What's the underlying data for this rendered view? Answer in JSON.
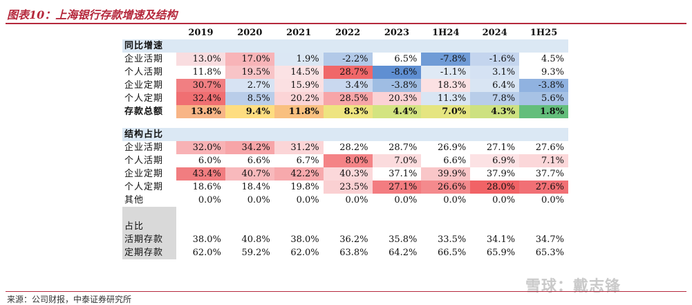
{
  "figure_title": "图表10：上海银行存款增速及结构",
  "source": "来源：公司财报，中泰证券研究所",
  "watermark": "雪球：戴志锋",
  "columns": [
    "2019",
    "2020",
    "2021",
    "2022",
    "2023",
    "1H24",
    "2024",
    "1H25"
  ],
  "sections": {
    "growth": {
      "title": "同比增速",
      "rows": [
        {
          "label": "企业活期",
          "values": [
            "13.0%",
            "17.0%",
            "1.9%",
            "-2.2%",
            "6.5%",
            "-7.8%",
            "-1.6%",
            "4.5%"
          ],
          "colors": [
            "#f9dde0",
            "#f8b4b8",
            "#dbe7f4",
            "#b2c9e8",
            "#ffffff",
            "#6f9bd6",
            "#c4d5ee",
            "#ffffff"
          ]
        },
        {
          "label": "个人活期",
          "values": [
            "11.8%",
            "19.5%",
            "14.5%",
            "28.7%",
            "-8.6%",
            "-1.1%",
            "3.1%",
            "9.3%"
          ],
          "colors": [
            "#ffffff",
            "#f8c4c7",
            "#fbe2e4",
            "#f06769",
            "#5f8fd2",
            "#dfe9f5",
            "#d5e2f3",
            "#ffffff"
          ]
        },
        {
          "label": "企业定期",
          "values": [
            "30.7%",
            "2.7%",
            "15.9%",
            "3.4%",
            "-3.8%",
            "18.3%",
            "6.4%",
            "-3.8%"
          ],
          "colors": [
            "#f17f82",
            "#d7e3f3",
            "#fbe0e2",
            "#c9d8ef",
            "#9fbde3",
            "#fbe1e3",
            "#d9e5f3",
            "#90b2e0"
          ]
        },
        {
          "label": "个人定期",
          "values": [
            "32.4%",
            "8.5%",
            "20.2%",
            "28.5%",
            "20.3%",
            "11.3%",
            "7.8%",
            "5.6%"
          ],
          "colors": [
            "#f06f72",
            "#b9cde9",
            "#fbd4d6",
            "#f7a5a8",
            "#fbd2d5",
            "#d9e5f3",
            "#b8cde9",
            "#a7c2e5"
          ]
        }
      ],
      "total": {
        "label": "存款总额",
        "values": [
          "13.8%",
          "9.4%",
          "11.8%",
          "8.3%",
          "4.4%",
          "7.0%",
          "4.3%",
          "1.8%"
        ],
        "colors": [
          "#f8b586",
          "#fedd80",
          "#f9c07f",
          "#eee480",
          "#d3e480",
          "#e5e580",
          "#cde180",
          "#63be7b"
        ]
      }
    },
    "structure": {
      "title": "结构占比",
      "rows": [
        {
          "label": "企业活期",
          "values": [
            "32.0%",
            "34.2%",
            "31.2%",
            "28.2%",
            "28.7%",
            "26.9%",
            "27.1%",
            "27.6%"
          ],
          "colors": [
            "#f8b2b5",
            "#f7a5a8",
            "#fbd5d7",
            "#ffffff",
            "#ffffff",
            "#ffffff",
            "#ffffff",
            "#ffffff"
          ]
        },
        {
          "label": "个人活期",
          "values": [
            "6.0%",
            "6.6%",
            "6.7%",
            "8.0%",
            "7.0%",
            "6.6%",
            "6.9%",
            "7.1%"
          ],
          "colors": [
            "#ffffff",
            "#ffffff",
            "#ffffff",
            "#f48386",
            "#fbdbdd",
            "#ffffff",
            "#fce2e4",
            "#fbd7d9"
          ]
        },
        {
          "label": "企业定期",
          "values": [
            "43.4%",
            "40.7%",
            "42.2%",
            "40.3%",
            "37.1%",
            "39.9%",
            "37.9%",
            "37.7%"
          ],
          "colors": [
            "#f17d80",
            "#f8b9bc",
            "#f7a9ac",
            "#fbd8da",
            "#ffffff",
            "#f9c6c8",
            "#ffffff",
            "#ffffff"
          ]
        },
        {
          "label": "个人定期",
          "values": [
            "18.6%",
            "18.4%",
            "19.8%",
            "23.5%",
            "27.1%",
            "26.6%",
            "28.0%",
            "27.6%"
          ],
          "colors": [
            "#ffffff",
            "#ffffff",
            "#ffffff",
            "#fad0d2",
            "#f37c80",
            "#f48a8d",
            "#f16366",
            "#f17075"
          ]
        },
        {
          "label": "其他",
          "values": [
            "0.0%",
            "0.0%",
            "0.0%",
            "0.0%",
            "0.0%",
            "0.0%",
            "0.0%",
            "0.0%"
          ],
          "colors": [
            "#ffffff",
            "#ffffff",
            "#ffffff",
            "#ffffff",
            "#ffffff",
            "#ffffff",
            "#ffffff",
            "#ffffff"
          ]
        }
      ]
    },
    "share": {
      "title": "占比",
      "rows": [
        {
          "label": "活期存款",
          "values": [
            "38.0%",
            "40.8%",
            "38.0%",
            "36.2%",
            "35.8%",
            "33.5%",
            "34.1%",
            "34.7%"
          ]
        },
        {
          "label": "定期存款",
          "values": [
            "62.0%",
            "59.2%",
            "62.0%",
            "63.8%",
            "64.2%",
            "66.5%",
            "65.9%",
            "65.3%"
          ]
        }
      ]
    }
  }
}
